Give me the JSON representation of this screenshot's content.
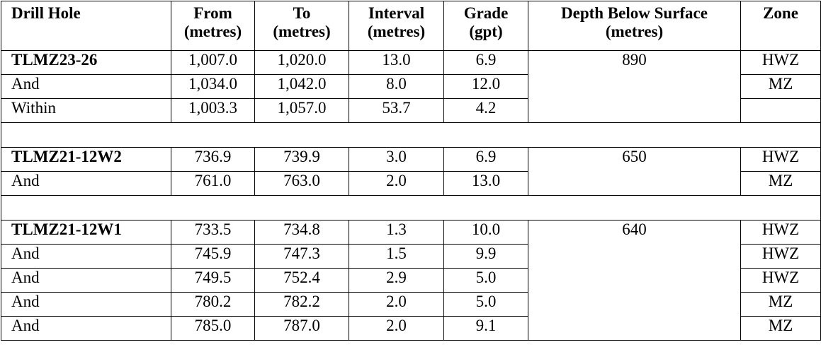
{
  "table": {
    "headers": {
      "drill_hole": "Drill Hole",
      "from_1": "From",
      "from_2": "(metres)",
      "to_1": "To",
      "to_2": "(metres)",
      "interval_1": "Interval",
      "interval_2": "(metres)",
      "grade_1": "Grade",
      "grade_2": "(gpt)",
      "depth_1": "Depth Below Surface",
      "depth_2": "(metres)",
      "zone": "Zone"
    },
    "groups": [
      {
        "depth": "890",
        "rows": [
          {
            "hole": "TLMZ23-26",
            "from": "1,007.0",
            "to": "1,020.0",
            "interval": "13.0",
            "grade": "6.9",
            "zone": "HWZ"
          },
          {
            "hole": "And",
            "from": "1,034.0",
            "to": "1,042.0",
            "interval": "8.0",
            "grade": "12.0",
            "zone": "MZ"
          },
          {
            "hole": "Within",
            "from": "1,003.3",
            "to": "1,057.0",
            "interval": "53.7",
            "grade": "4.2",
            "zone": ""
          }
        ]
      },
      {
        "depth": "650",
        "rows": [
          {
            "hole": "TLMZ21-12W2",
            "from": "736.9",
            "to": "739.9",
            "interval": "3.0",
            "grade": "6.9",
            "zone": "HWZ"
          },
          {
            "hole": "And",
            "from": "761.0",
            "to": "763.0",
            "interval": "2.0",
            "grade": "13.0",
            "zone": "MZ"
          }
        ]
      },
      {
        "depth": "640",
        "rows": [
          {
            "hole": "TLMZ21-12W1",
            "from": "733.5",
            "to": "734.8",
            "interval": "1.3",
            "grade": "10.0",
            "zone": "HWZ"
          },
          {
            "hole": "And",
            "from": "745.9",
            "to": "747.3",
            "interval": "1.5",
            "grade": "9.9",
            "zone": "HWZ"
          },
          {
            "hole": "And",
            "from": "749.5",
            "to": "752.4",
            "interval": "2.9",
            "grade": "5.0",
            "zone": "HWZ"
          },
          {
            "hole": "And",
            "from": "780.2",
            "to": "782.2",
            "interval": "2.0",
            "grade": "5.0",
            "zone": "MZ"
          },
          {
            "hole": "And",
            "from": "785.0",
            "to": "787.0",
            "interval": "2.0",
            "grade": "9.1",
            "zone": "MZ"
          }
        ]
      }
    ]
  }
}
